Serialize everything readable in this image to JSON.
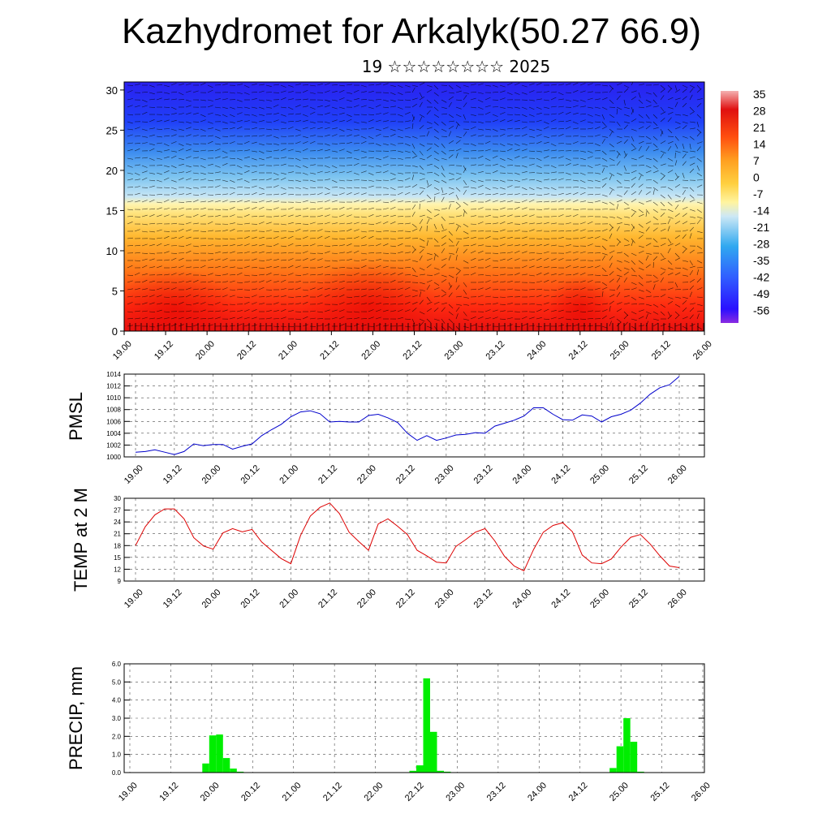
{
  "header": {
    "title": "Kazhydromet for Arkalyk(50.27 66.9)",
    "subtitle": "19 ☆☆☆☆☆☆☆☆ 2025"
  },
  "chart_data": [
    {
      "type": "heatmap",
      "id": "cross_section",
      "xlabel": "",
      "ylabel": "",
      "x_tick_labels": [
        "19.00",
        "19.12",
        "20.00",
        "20.12",
        "21.00",
        "21.12",
        "22.00",
        "22.12",
        "23.00",
        "23.12",
        "24.00",
        "24.12",
        "25.00",
        "25.12",
        "26.00"
      ],
      "y_ticks": [
        0,
        5,
        10,
        15,
        20,
        25,
        30
      ],
      "ylim": [
        0,
        31
      ],
      "colorbar_labels": [
        "35",
        "28",
        "21",
        "14",
        "7",
        "0",
        "-7",
        "-14",
        "-21",
        "-28",
        "-35",
        "-42",
        "-49",
        "-56"
      ],
      "colors": [
        "#8a2be2",
        "#1e1eff",
        "#3f6bff",
        "#38a8ee",
        "#bfe3f5",
        "#fff0a0",
        "#ffd24a",
        "#ffa020",
        "#ff6a10",
        "#ff2010",
        "#e01010",
        "#f2a0a0"
      ],
      "overlay": "wind barbs"
    },
    {
      "type": "line",
      "id": "pmsl",
      "ylabel": "PMSL",
      "x_tick_labels": [
        "19.00",
        "19.12",
        "20.00",
        "20.12",
        "21.00",
        "21.12",
        "22.00",
        "22.12",
        "23.00",
        "23.12",
        "24.00",
        "24.12",
        "25.00",
        "25.12",
        "26.00"
      ],
      "y_ticks": [
        1000,
        1002,
        1004,
        1006,
        1008,
        1010,
        1012,
        1014
      ],
      "ylim": [
        1000,
        1014
      ],
      "color": "#0000cc",
      "values": [
        1000.8,
        1000.9,
        1001.2,
        1000.8,
        1000.4,
        1000.9,
        1002.2,
        1001.9,
        1002.1,
        1002.1,
        1001.3,
        1001.8,
        1002.2,
        1003.6,
        1004.6,
        1005.5,
        1006.8,
        1007.6,
        1007.8,
        1007.3,
        1005.9,
        1006.0,
        1005.9,
        1005.9,
        1007.0,
        1007.2,
        1006.6,
        1005.8,
        1004.0,
        1002.8,
        1003.6,
        1002.8,
        1003.2,
        1003.7,
        1003.8,
        1004.1,
        1004.0,
        1005.2,
        1005.7,
        1006.2,
        1006.9,
        1008.3,
        1008.3,
        1007.2,
        1006.3,
        1006.2,
        1007.1,
        1006.9,
        1005.9,
        1006.8,
        1007.2,
        1007.9,
        1009.1,
        1010.6,
        1011.7,
        1012.2,
        1013.6
      ]
    },
    {
      "type": "line",
      "id": "temp",
      "ylabel": "TEMP at 2 M",
      "x_tick_labels": [
        "19.00",
        "19.12",
        "20.00",
        "20.12",
        "21.00",
        "21.12",
        "22.00",
        "22.12",
        "23.00",
        "23.12",
        "24.00",
        "24.12",
        "25.00",
        "25.12",
        "26.00"
      ],
      "y_ticks": [
        9,
        12,
        15,
        18,
        21,
        24,
        27,
        30
      ],
      "ylim": [
        9,
        30
      ],
      "color": "#dd0000",
      "values": [
        18.0,
        22.8,
        25.8,
        27.3,
        27.3,
        24.8,
        20.0,
        17.9,
        17.1,
        21.2,
        22.3,
        21.5,
        22.1,
        18.9,
        16.8,
        14.7,
        13.4,
        20.6,
        25.5,
        27.7,
        28.8,
        26.1,
        21.4,
        19.0,
        16.8,
        23.5,
        24.8,
        22.9,
        20.8,
        16.8,
        15.4,
        13.8,
        13.6,
        17.8,
        19.5,
        21.4,
        22.3,
        19.2,
        15.3,
        12.8,
        11.6,
        17.0,
        21.4,
        23.1,
        23.8,
        21.5,
        15.6,
        13.6,
        13.4,
        14.6,
        17.6,
        20.1,
        20.8,
        18.4,
        15.4,
        12.8,
        12.4
      ]
    },
    {
      "type": "bar",
      "id": "precip",
      "ylabel": "PRECIP, mm",
      "x_tick_labels": [
        "19.00",
        "19.12",
        "20.00",
        "20.12",
        "21.00",
        "21.12",
        "22.00",
        "22.12",
        "23.00",
        "23.12",
        "24.00",
        "24.12",
        "25.00",
        "25.12",
        "26.00"
      ],
      "y_ticks": [
        "0.0",
        "1.0",
        "2.0",
        "3.0",
        "4.0",
        "5.0",
        "6.0"
      ],
      "ylim": [
        0,
        6
      ],
      "color": "#00ee00",
      "values": [
        0,
        0,
        0,
        0,
        0,
        0,
        0,
        0,
        0,
        0.02,
        0,
        0.5,
        2.05,
        2.1,
        0.8,
        0.22,
        0.05,
        0,
        0,
        0,
        0,
        0,
        0,
        0,
        0,
        0,
        0,
        0,
        0,
        0,
        0,
        0.02,
        0,
        0,
        0,
        0,
        0,
        0,
        0,
        0,
        0,
        0.1,
        0.4,
        5.2,
        2.25,
        0.1,
        0.05,
        0,
        0,
        0,
        0,
        0,
        0,
        0,
        0,
        0,
        0,
        0,
        0,
        0,
        0,
        0,
        0,
        0,
        0,
        0,
        0,
        0,
        0,
        0.02,
        0.25,
        1.45,
        3.0,
        1.7,
        0.05,
        0,
        0,
        0,
        0,
        0,
        0,
        0,
        0,
        0
      ]
    }
  ]
}
